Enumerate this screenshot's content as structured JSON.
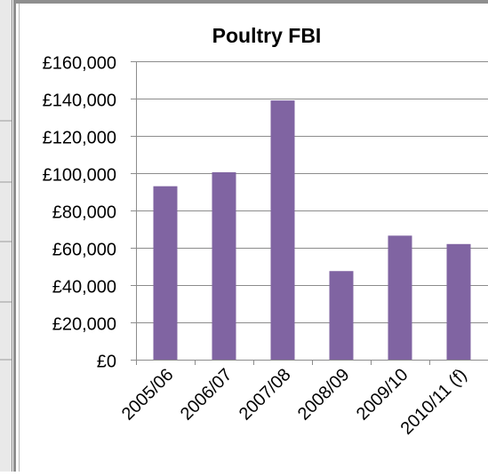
{
  "chart_data": {
    "type": "bar",
    "title": "Poultry FBI",
    "categories": [
      "2005/06",
      "2006/07",
      "2007/08",
      "2008/09",
      "2009/10",
      "2010/11 (f)"
    ],
    "values": [
      93000,
      100500,
      139000,
      47500,
      66500,
      62000
    ],
    "ylim": [
      0,
      160000
    ],
    "yticks": [
      0,
      20000,
      40000,
      60000,
      80000,
      100000,
      120000,
      140000,
      160000
    ],
    "ytick_labels": [
      "£0",
      "£20,000",
      "£40,000",
      "£60,000",
      "£80,000",
      "£100,000",
      "£120,000",
      "£140,000",
      "£160,000"
    ],
    "xlabel": "",
    "ylabel": "",
    "grid": true,
    "legend": "none",
    "bar_color": "#8064A2"
  }
}
